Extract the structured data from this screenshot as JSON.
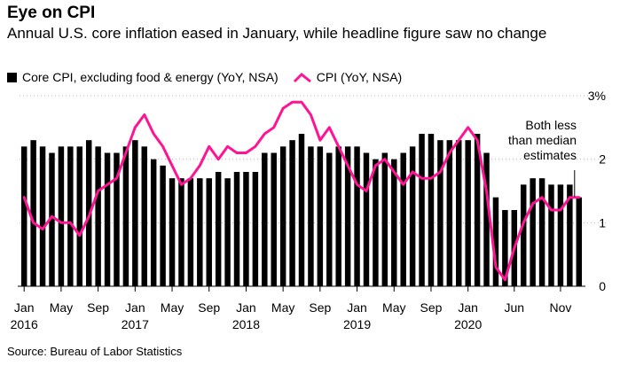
{
  "title": "Eye on CPI",
  "subtitle": "Annual U.S. core inflation eased in January, while headline figure saw no change",
  "legend": {
    "core_label": "Core CPI, excluding food & energy (YoY, NSA)",
    "cpi_label": "CPI (YoY, NSA)"
  },
  "source": "Source: Bureau of Labor Statistics",
  "colors": {
    "bar": "#000000",
    "line": "#ff1493",
    "gridline": "#bbbbbb"
  },
  "chart_data": {
    "type": "bar",
    "ylim": [
      0,
      3
    ],
    "y_ticks": [
      {
        "value": 0,
        "label": "0"
      },
      {
        "value": 1,
        "label": "1"
      },
      {
        "value": 2,
        "label": "2"
      },
      {
        "value": 3,
        "label": "3%"
      }
    ],
    "x_ticks": [
      {
        "index": 0,
        "line1": "Jan",
        "line2": "2016"
      },
      {
        "index": 4,
        "line1": "May",
        "line2": ""
      },
      {
        "index": 8,
        "line1": "Sep",
        "line2": ""
      },
      {
        "index": 12,
        "line1": "Jan",
        "line2": "2017"
      },
      {
        "index": 16,
        "line1": "May",
        "line2": ""
      },
      {
        "index": 20,
        "line1": "Sep",
        "line2": ""
      },
      {
        "index": 24,
        "line1": "Jan",
        "line2": "2018"
      },
      {
        "index": 28,
        "line1": "May",
        "line2": ""
      },
      {
        "index": 32,
        "line1": "Sep",
        "line2": ""
      },
      {
        "index": 36,
        "line1": "Jan",
        "line2": "2019"
      },
      {
        "index": 40,
        "line1": "May",
        "line2": ""
      },
      {
        "index": 44,
        "line1": "Sep",
        "line2": ""
      },
      {
        "index": 48,
        "line1": "Jan",
        "line2": "2020"
      },
      {
        "index": 53,
        "line1": "Jun",
        "line2": ""
      },
      {
        "index": 58,
        "line1": "Nov",
        "line2": ""
      }
    ],
    "series": [
      {
        "name": "Core CPI, excluding food & energy (YoY, NSA)",
        "kind": "bar",
        "values": [
          2.2,
          2.3,
          2.2,
          2.1,
          2.2,
          2.2,
          2.2,
          2.3,
          2.2,
          2.1,
          2.1,
          2.2,
          2.3,
          2.2,
          2.0,
          1.9,
          1.7,
          1.7,
          1.7,
          1.7,
          1.7,
          1.8,
          1.7,
          1.8,
          1.8,
          1.8,
          2.1,
          2.1,
          2.2,
          2.3,
          2.4,
          2.2,
          2.2,
          2.1,
          2.2,
          2.2,
          2.2,
          2.1,
          2.0,
          2.1,
          2.0,
          2.1,
          2.2,
          2.4,
          2.4,
          2.3,
          2.3,
          2.3,
          2.3,
          2.4,
          2.1,
          1.4,
          1.2,
          1.2,
          1.6,
          1.7,
          1.7,
          1.6,
          1.6,
          1.6,
          1.4
        ]
      },
      {
        "name": "CPI (YoY, NSA)",
        "kind": "line",
        "values": [
          1.4,
          1.0,
          0.9,
          1.1,
          1.0,
          1.0,
          0.8,
          1.1,
          1.5,
          1.6,
          1.7,
          2.1,
          2.5,
          2.7,
          2.4,
          2.2,
          1.9,
          1.6,
          1.7,
          1.9,
          2.2,
          2.0,
          2.2,
          2.1,
          2.1,
          2.2,
          2.4,
          2.5,
          2.8,
          2.9,
          2.9,
          2.7,
          2.3,
          2.5,
          2.2,
          1.9,
          1.6,
          1.5,
          1.9,
          2.0,
          1.8,
          1.6,
          1.8,
          1.7,
          1.7,
          1.8,
          2.1,
          2.3,
          2.5,
          2.3,
          1.5,
          0.3,
          0.1,
          0.6,
          1.0,
          1.3,
          1.4,
          1.2,
          1.2,
          1.4,
          1.4
        ]
      }
    ],
    "annotation": {
      "lines": [
        "Both less",
        "than median",
        "estimates"
      ]
    }
  }
}
